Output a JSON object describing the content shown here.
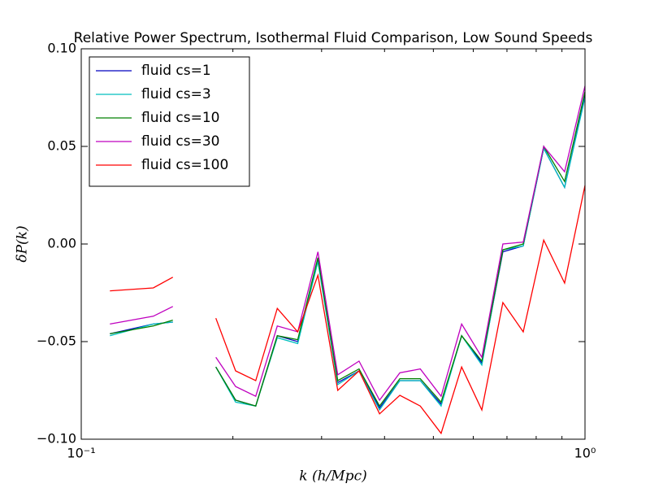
{
  "chart_data": {
    "type": "line",
    "title": "Relative Power Spectrum, Isothermal Fluid Comparison, Low Sound Speeds",
    "xlabel": "k (h/Mpc)",
    "ylabel": "δP(k)",
    "xscale": "log",
    "legend": "upper left",
    "x": [
      0.114,
      0.139,
      0.152,
      0.168,
      0.185,
      0.2025,
      0.222,
      0.245,
      0.269,
      0.295,
      0.323,
      0.356,
      0.391,
      0.429,
      0.471,
      0.518,
      0.569,
      0.624,
      0.687,
      0.754,
      0.828,
      0.911,
      1.0
    ],
    "series": [
      {
        "name": "fluid cs=1",
        "color": "#0000bf",
        "values": [
          -0.046,
          -0.041,
          -0.04,
          null,
          -0.063,
          -0.08,
          -0.083,
          -0.047,
          -0.05,
          -0.008,
          -0.071,
          -0.065,
          -0.084,
          -0.07,
          -0.07,
          -0.082,
          -0.047,
          -0.061,
          -0.004,
          -0.001,
          0.049,
          0.029,
          0.076
        ]
      },
      {
        "name": "fluid cs=3",
        "color": "#00bfbf",
        "values": [
          -0.047,
          -0.041,
          -0.04,
          null,
          -0.063,
          -0.081,
          -0.083,
          -0.048,
          -0.051,
          -0.009,
          -0.072,
          -0.065,
          -0.085,
          -0.07,
          -0.07,
          -0.083,
          -0.047,
          -0.062,
          -0.003,
          -0.001,
          0.049,
          0.029,
          0.075
        ]
      },
      {
        "name": "fluid cs=10",
        "color": "#008000",
        "values": [
          -0.046,
          -0.042,
          -0.039,
          null,
          -0.063,
          -0.08,
          -0.083,
          -0.047,
          -0.049,
          -0.007,
          -0.07,
          -0.064,
          -0.083,
          -0.069,
          -0.069,
          -0.081,
          -0.047,
          -0.06,
          -0.003,
          0.0,
          0.05,
          0.032,
          0.078
        ]
      },
      {
        "name": "fluid cs=30",
        "color": "#bf00bf",
        "values": [
          -0.041,
          -0.037,
          -0.032,
          null,
          -0.058,
          -0.073,
          -0.078,
          -0.042,
          -0.045,
          -0.004,
          -0.067,
          -0.06,
          -0.08,
          -0.066,
          -0.064,
          -0.078,
          -0.041,
          -0.058,
          0.0,
          0.001,
          0.05,
          0.037,
          0.081
        ]
      },
      {
        "name": "fluid cs=100",
        "color": "#ff0000",
        "values": [
          -0.024,
          -0.0225,
          -0.017,
          null,
          -0.038,
          -0.065,
          -0.07,
          -0.033,
          -0.045,
          -0.016,
          -0.075,
          -0.065,
          -0.087,
          -0.0775,
          -0.083,
          -0.097,
          -0.063,
          -0.085,
          -0.03,
          -0.045,
          0.002,
          -0.02,
          0.03
        ]
      }
    ],
    "xlim": [
      0.1,
      1.0
    ],
    "xticks": [
      {
        "value": 0.1,
        "label": "10⁻¹"
      },
      {
        "value": 1.0,
        "label": "10⁰"
      }
    ],
    "xminorticks": [
      0.2,
      0.3,
      0.4,
      0.5,
      0.6,
      0.7,
      0.8,
      0.9
    ],
    "ylim": [
      -0.1,
      0.1
    ],
    "yticks": [
      {
        "value": -0.1,
        "label": "−0.10"
      },
      {
        "value": -0.05,
        "label": "−0.05"
      },
      {
        "value": 0,
        "label": "0.00"
      },
      {
        "value": 0.05,
        "label": "0.05"
      },
      {
        "value": 0.1,
        "label": "0.10"
      }
    ]
  }
}
